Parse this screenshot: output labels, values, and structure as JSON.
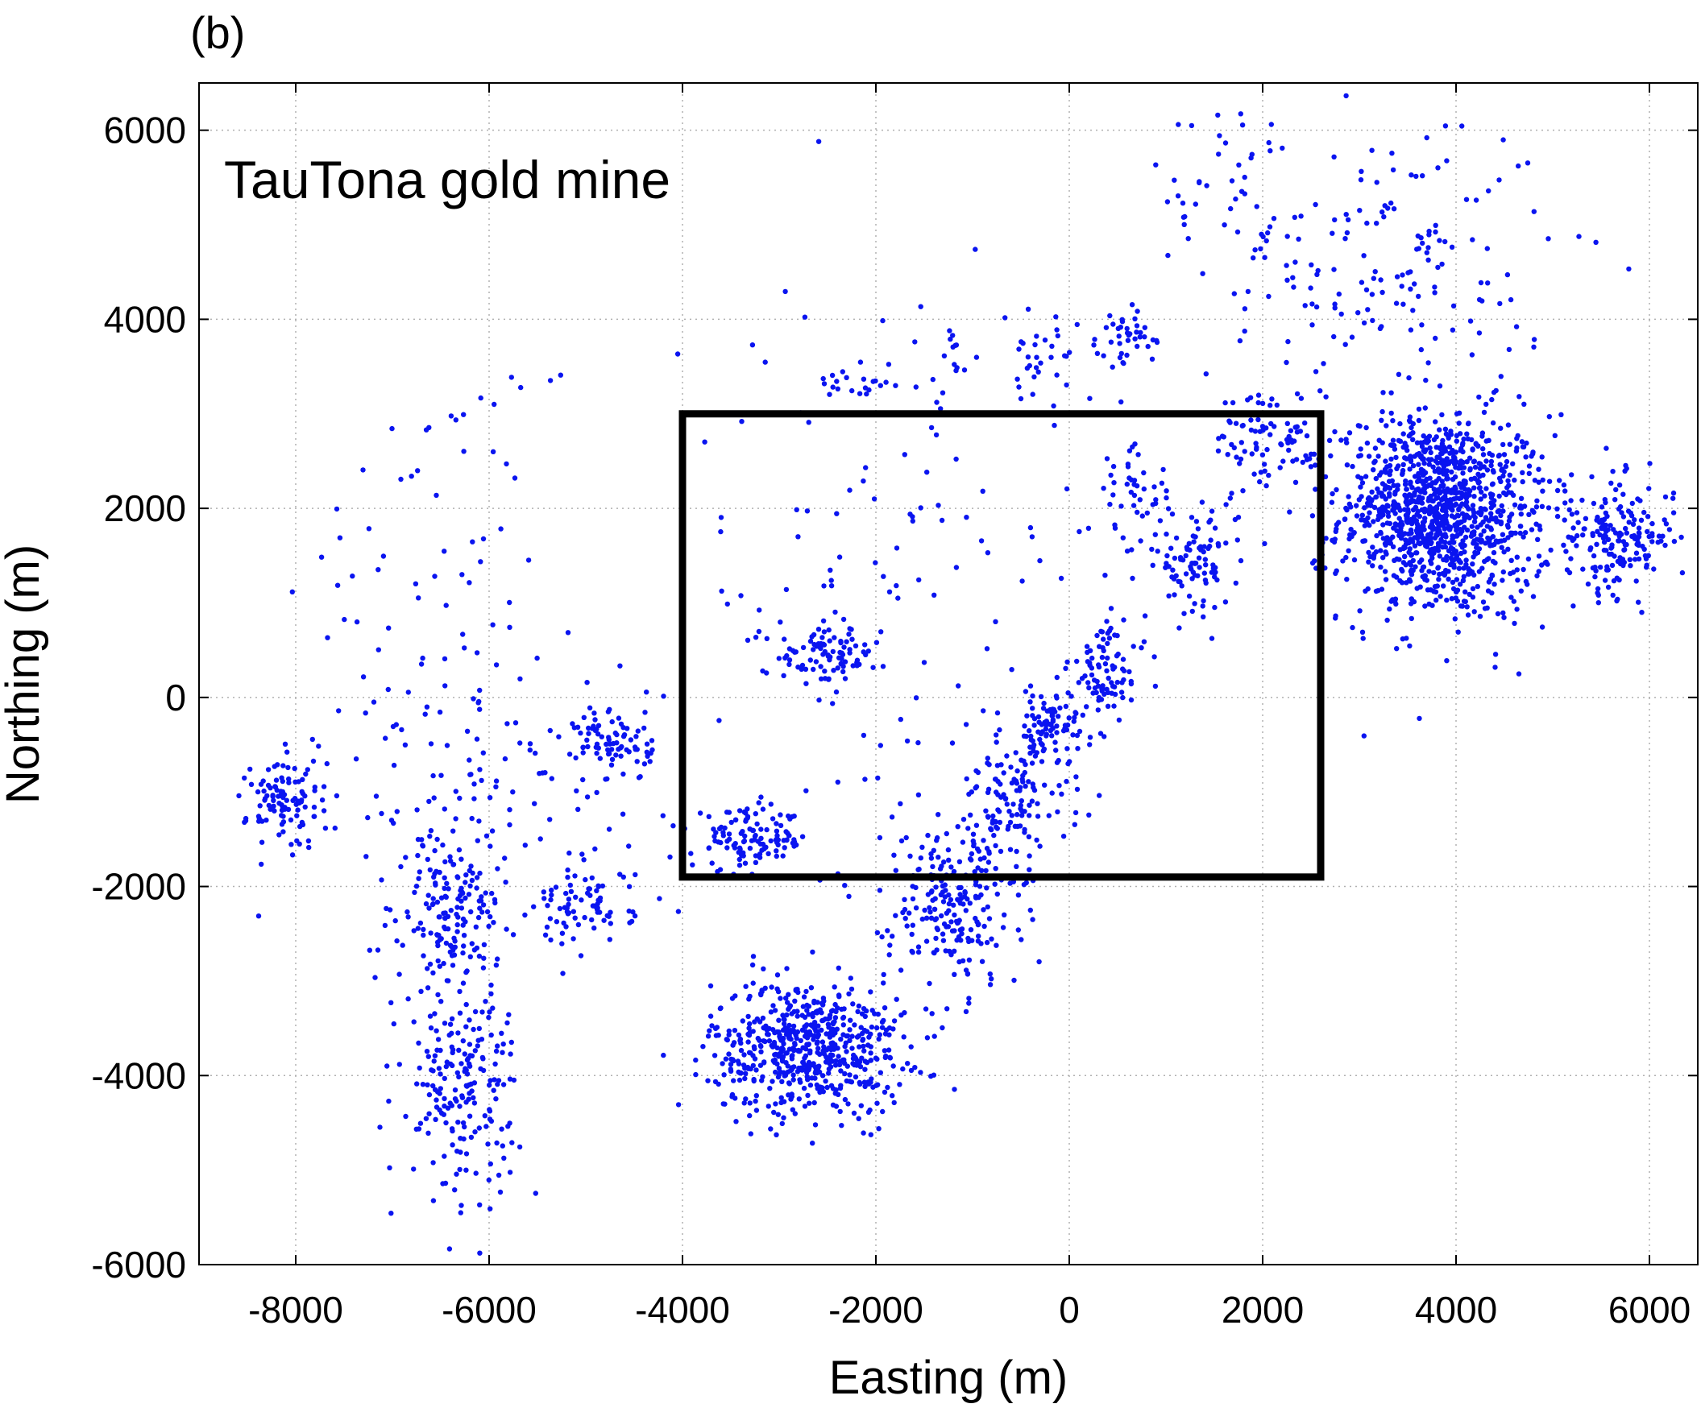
{
  "figure": {
    "panel_label": "(b)",
    "annotation": "TauTona gold mine"
  },
  "colors": {
    "points": "#0a14f0",
    "box": "#000000",
    "grid": "#b0b0b0"
  },
  "chart_data": {
    "type": "scatter",
    "title": "",
    "xlabel": "Easting (m)",
    "ylabel": "Northing (m)",
    "xlim": [
      -9000,
      6500
    ],
    "ylim": [
      -6000,
      6500
    ],
    "xticks": [
      -8000,
      -6000,
      -4000,
      -2000,
      0,
      2000,
      4000,
      6000
    ],
    "yticks": [
      -6000,
      -4000,
      -2000,
      0,
      2000,
      4000,
      6000
    ],
    "xtick_labels": [
      "-8000",
      "-6000",
      "-4000",
      "-2000",
      "0",
      "2000",
      "4000",
      "6000"
    ],
    "ytick_labels": [
      "-6000",
      "-4000",
      "-2000",
      "0",
      "2000",
      "4000",
      "6000"
    ],
    "grid": true,
    "annotations": [
      {
        "type": "rectangle",
        "x0": -4000,
        "x1": 2600,
        "y0": -1900,
        "y1": 3000
      }
    ],
    "series": [
      {
        "clusters": [
          {
            "cx": 3900,
            "cy": 1900,
            "sx": 550,
            "sy": 550,
            "n": 900
          },
          {
            "cx": 3700,
            "cy": 2100,
            "sx": 300,
            "sy": 400,
            "n": 300
          },
          {
            "cx": 5700,
            "cy": 1700,
            "sx": 280,
            "sy": 300,
            "n": 180
          },
          {
            "cx": 3200,
            "cy": 4600,
            "sx": 900,
            "sy": 800,
            "n": 180
          },
          {
            "cx": 2100,
            "cy": 2700,
            "sx": 300,
            "sy": 300,
            "n": 90
          },
          {
            "cx": -2700,
            "cy": -3700,
            "sx": 500,
            "sy": 350,
            "n": 600
          },
          {
            "cx": -1200,
            "cy": -2200,
            "sx": 350,
            "sy": 450,
            "n": 220
          },
          {
            "cx": -600,
            "cy": -1100,
            "sx": 300,
            "sy": 350,
            "n": 120
          },
          {
            "cx": -200,
            "cy": -300,
            "sx": 250,
            "sy": 200,
            "n": 90
          },
          {
            "cx": 400,
            "cy": 300,
            "sx": 200,
            "sy": 250,
            "n": 90
          },
          {
            "cx": 1300,
            "cy": 1400,
            "sx": 200,
            "sy": 250,
            "n": 90
          },
          {
            "cx": 700,
            "cy": 2100,
            "sx": 200,
            "sy": 300,
            "n": 50
          },
          {
            "cx": -3300,
            "cy": -1500,
            "sx": 300,
            "sy": 150,
            "n": 120
          },
          {
            "cx": -2500,
            "cy": 450,
            "sx": 250,
            "sy": 150,
            "n": 90
          },
          {
            "cx": -6400,
            "cy": -2300,
            "sx": 250,
            "sy": 400,
            "n": 150
          },
          {
            "cx": -6300,
            "cy": -4100,
            "sx": 300,
            "sy": 550,
            "n": 200
          },
          {
            "cx": -8100,
            "cy": -1100,
            "sx": 200,
            "sy": 250,
            "n": 110
          },
          {
            "cx": -4700,
            "cy": -500,
            "sx": 200,
            "sy": 200,
            "n": 80
          },
          {
            "cx": -5000,
            "cy": -2200,
            "sx": 250,
            "sy": 200,
            "n": 70
          },
          {
            "cx": -6000,
            "cy": -1200,
            "sx": 900,
            "sy": 900,
            "n": 140
          },
          {
            "cx": 600,
            "cy": 3800,
            "sx": 150,
            "sy": 150,
            "n": 40
          },
          {
            "cx": -300,
            "cy": 3500,
            "sx": 200,
            "sy": 250,
            "n": 35
          },
          {
            "cx": -1900,
            "cy": 1000,
            "sx": 1200,
            "sy": 1800,
            "n": 130
          },
          {
            "cx": -2200,
            "cy": 3300,
            "sx": 200,
            "sy": 100,
            "n": 20
          },
          {
            "cx": -1200,
            "cy": 3500,
            "sx": 100,
            "sy": 200,
            "n": 15
          },
          {
            "cx": -6800,
            "cy": 1000,
            "sx": 600,
            "sy": 1000,
            "n": 40
          },
          {
            "cx": -6000,
            "cy": 3000,
            "sx": 500,
            "sy": 300,
            "n": 15
          },
          {
            "cx": 1500,
            "cy": 5500,
            "sx": 400,
            "sy": 400,
            "n": 30
          }
        ]
      }
    ]
  }
}
